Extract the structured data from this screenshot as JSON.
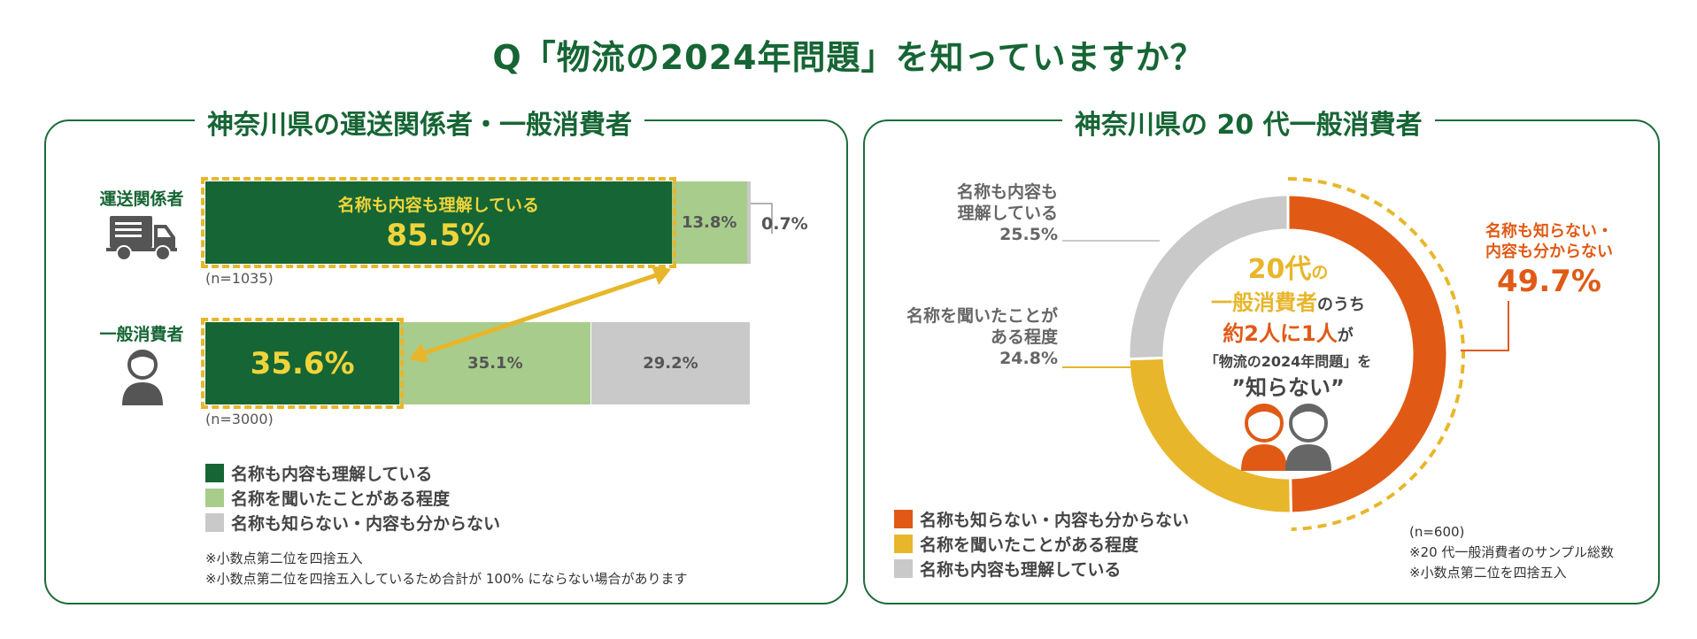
{
  "title": "Q「物流の2024年問題」を知っていますか？",
  "colors": {
    "dark_green": "#166534",
    "light_green": "#a8cc8c",
    "gray": "#c9c9c9",
    "orange": "#e05a16",
    "yellow": "#e8b62b"
  },
  "left_panel": {
    "title": "神奈川県の運送関係者・一般消費者",
    "rows": [
      {
        "label": "運送関係者",
        "icon": "truck-icon",
        "inner_label": "名称も内容も理解している",
        "value_labels": [
          "85.5%",
          "13.8%",
          "0.7%"
        ],
        "n": "(n=1035)"
      },
      {
        "label": "一般消費者",
        "icon": "person-icon",
        "value_labels": [
          "35.6%",
          "35.1%",
          "29.2%"
        ],
        "n": "(n=3000)"
      }
    ],
    "legend": [
      "名称も内容も理解している",
      "名称を聞いたことがある程度",
      "名称も知らない・内容も分からない"
    ],
    "notes": [
      "※小数点第二位を四捨五入",
      "※小数点第二位を四捨五入しているため合計が 100% にならない場合があります"
    ]
  },
  "right_panel": {
    "title": "神奈川県の 20 代一般消費者",
    "center_text": {
      "line1a": "20代",
      "line1b": "の",
      "line2a": "一般消費者",
      "line2b": "のうち",
      "line3a": "約2人に1人",
      "line3b": "が",
      "line4": "「物流の2024年問題」を",
      "line5": "”知らない”"
    },
    "labels": {
      "unknown_line1": "名称も知らない・",
      "unknown_line2": "内容も分からない",
      "unknown_value": "49.7%",
      "heard_line1": "名称を聞いたことが",
      "heard_line2": "ある程度",
      "heard_value": "24.8%",
      "understand_line1": "名称も内容も",
      "understand_line2": "理解している",
      "understand_value": "25.5%"
    },
    "legend": [
      "名称も知らない・内容も分からない",
      "名称を聞いたことがある程度",
      "名称も内容も理解している"
    ],
    "notes": [
      "(n=600)",
      "※20 代一般消費者のサンプル総数",
      "※小数点第二位を四捨五入"
    ]
  },
  "chart_data": [
    {
      "type": "bar",
      "orientation": "horizontal-stacked",
      "title": "神奈川県の運送関係者・一般消費者",
      "categories": [
        "運送関係者",
        "一般消費者"
      ],
      "series": [
        {
          "name": "名称も内容も理解している",
          "values": [
            85.5,
            35.6
          ]
        },
        {
          "name": "名称を聞いたことがある程度",
          "values": [
            13.8,
            35.1
          ]
        },
        {
          "name": "名称も知らない・内容も分からない",
          "values": [
            0.7,
            29.2
          ]
        }
      ],
      "xlim": [
        0,
        100
      ],
      "grid": false,
      "legend": "bottom-left"
    },
    {
      "type": "pie",
      "variant": "donut",
      "title": "神奈川県の 20 代一般消費者",
      "categories": [
        "名称も知らない・内容も分からない",
        "名称を聞いたことがある程度",
        "名称も内容も理解している"
      ],
      "values": [
        49.7,
        24.8,
        25.5
      ],
      "legend": "bottom-left"
    }
  ]
}
